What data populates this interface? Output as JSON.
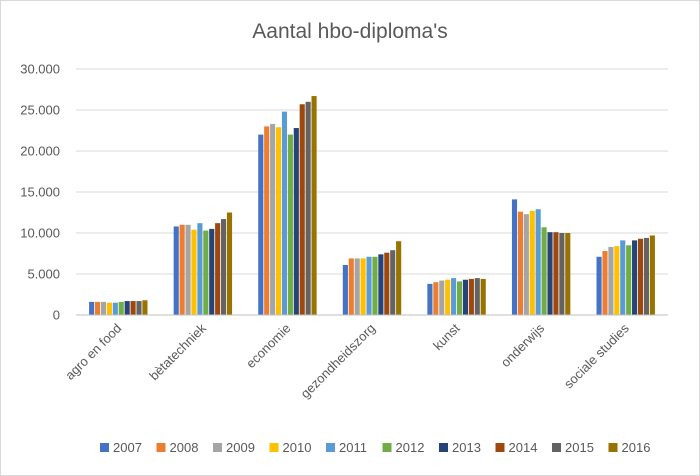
{
  "chart_data": {
    "type": "bar",
    "title": "Aantal hbo-diploma's",
    "xlabel": "",
    "ylabel": "",
    "ylim": [
      0,
      30000
    ],
    "y_ticks": [
      "0",
      "5.000",
      "10.000",
      "15.000",
      "20.000",
      "25.000",
      "30.000"
    ],
    "y_tick_values": [
      0,
      5000,
      10000,
      15000,
      20000,
      25000,
      30000
    ],
    "grid": true,
    "legend_position": "bottom",
    "categories": [
      "agro en food",
      "bètatechniek",
      "economie",
      "gezondheidszorg",
      "kunst",
      "onderwijs",
      "sociale studies"
    ],
    "series": [
      {
        "name": "2007",
        "color": "#4472c4",
        "values": [
          1600,
          10800,
          22000,
          6100,
          3800,
          14100,
          7100
        ]
      },
      {
        "name": "2008",
        "color": "#ed7d31",
        "values": [
          1600,
          11000,
          23000,
          6900,
          4000,
          12600,
          7800
        ]
      },
      {
        "name": "2009",
        "color": "#a5a5a5",
        "values": [
          1600,
          11000,
          23300,
          6900,
          4200,
          12300,
          8300
        ]
      },
      {
        "name": "2010",
        "color": "#ffc000",
        "values": [
          1500,
          10400,
          22900,
          6900,
          4300,
          12700,
          8400
        ]
      },
      {
        "name": "2011",
        "color": "#5b9bd5",
        "values": [
          1500,
          11200,
          24800,
          7100,
          4500,
          12900,
          9100
        ]
      },
      {
        "name": "2012",
        "color": "#70ad47",
        "values": [
          1600,
          10300,
          22000,
          7100,
          4100,
          10700,
          8500
        ]
      },
      {
        "name": "2013",
        "color": "#264478",
        "values": [
          1700,
          10500,
          22800,
          7400,
          4300,
          10100,
          9100
        ]
      },
      {
        "name": "2014",
        "color": "#9e480e",
        "values": [
          1700,
          11200,
          25700,
          7600,
          4400,
          10100,
          9300
        ]
      },
      {
        "name": "2015",
        "color": "#636363",
        "values": [
          1700,
          11700,
          26000,
          7900,
          4500,
          10000,
          9400
        ]
      },
      {
        "name": "2016",
        "color": "#997300",
        "values": [
          1800,
          12500,
          26700,
          9000,
          4400,
          10000,
          9700
        ]
      }
    ]
  }
}
